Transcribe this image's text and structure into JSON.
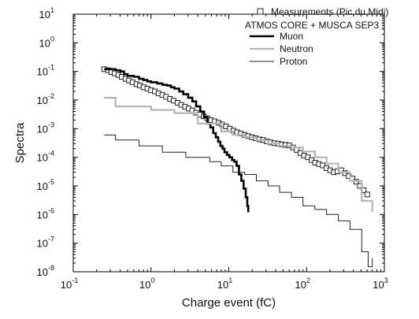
{
  "chart_data": {
    "type": "line",
    "xlabel": "Charge event (fC)",
    "ylabel": "Spectra",
    "x_scale": "log",
    "y_scale": "log",
    "xlim": [
      0.1,
      1000
    ],
    "ylim": [
      1e-08,
      10
    ],
    "x_ticks": [
      {
        "value": 0.1,
        "base": "10",
        "exp": "-1"
      },
      {
        "value": 1,
        "base": "10",
        "exp": "0"
      },
      {
        "value": 10,
        "base": "10",
        "exp": "1"
      },
      {
        "value": 100,
        "base": "10",
        "exp": "2"
      },
      {
        "value": 1000,
        "base": "10",
        "exp": "3"
      }
    ],
    "y_ticks": [
      {
        "value": 10,
        "base": "10",
        "exp": "1"
      },
      {
        "value": 1,
        "base": "10",
        "exp": "0"
      },
      {
        "value": 0.1,
        "base": "10",
        "exp": "-1"
      },
      {
        "value": 0.01,
        "base": "10",
        "exp": "-2"
      },
      {
        "value": 0.001,
        "base": "10",
        "exp": "-3"
      },
      {
        "value": 0.0001,
        "base": "10",
        "exp": "-4"
      },
      {
        "value": 1e-05,
        "base": "10",
        "exp": "-5"
      },
      {
        "value": 1e-06,
        "base": "10",
        "exp": "-6"
      },
      {
        "value": 1e-07,
        "base": "10",
        "exp": "-7"
      },
      {
        "value": 1e-08,
        "base": "10",
        "exp": "-8"
      }
    ],
    "grid": false,
    "legend_position": "top-right",
    "legend_heading": "ATMOS CORE + MUSCA SEP3 :",
    "series": [
      {
        "name": "Measurements (Pic du Midi)",
        "style": "markers",
        "marker": "open-square",
        "color": "#222222",
        "x": [
          0.25,
          0.28,
          0.31,
          0.34,
          0.38,
          0.42,
          0.47,
          0.52,
          0.58,
          0.65,
          0.72,
          0.8,
          0.9,
          1.0,
          1.12,
          1.25,
          1.4,
          1.56,
          1.75,
          1.95,
          2.2,
          2.45,
          2.75,
          3.05,
          3.4,
          3.8,
          4.25,
          4.75,
          5.3,
          5.9,
          6.6,
          7.4,
          8.2,
          9.2,
          10.3,
          11.5,
          12.8,
          14.3,
          16.0,
          17.8,
          19.9,
          22.2,
          24.8,
          27.7,
          30.9,
          34.5,
          38.5,
          43,
          48,
          53.6,
          59.8,
          66.8,
          74.6,
          83.3,
          93,
          104,
          116,
          129,
          144,
          161,
          180,
          201,
          224,
          250,
          280,
          312,
          348,
          389,
          434,
          485,
          541,
          604
        ],
        "y": [
          0.12,
          0.11,
          0.095,
          0.085,
          0.075,
          0.065,
          0.055,
          0.048,
          0.042,
          0.036,
          0.032,
          0.028,
          0.025,
          0.022,
          0.02,
          0.017,
          0.015,
          0.013,
          0.011,
          0.0095,
          0.008,
          0.0068,
          0.0058,
          0.005,
          0.0043,
          0.0036,
          0.0031,
          0.0027,
          0.0023,
          0.002,
          0.0018,
          0.0016,
          0.0014,
          0.0012,
          0.001,
          0.00085,
          0.00075,
          0.00068,
          0.0006,
          0.00055,
          0.0005,
          0.00046,
          0.00042,
          0.0004,
          0.00036,
          0.00033,
          0.00031,
          0.0003,
          0.00028,
          0.00027,
          0.00026,
          0.00022,
          0.00018,
          0.00014,
          0.000115,
          0.0001,
          8e-05,
          6.5e-05,
          5.8e-05,
          5.2e-05,
          4.2e-05,
          3.5e-05,
          3e-05,
          3.2e-05,
          3.5e-05,
          2.8e-05,
          2.2e-05,
          1.8e-05,
          1.4e-05,
          1e-05,
          7e-06,
          5e-06
        ]
      },
      {
        "name": "Muon",
        "style": "step",
        "color": "#000000",
        "width": 2.6,
        "x": [
          0.25,
          0.3,
          0.35,
          0.4,
          0.45,
          0.5,
          0.6,
          0.7,
          0.8,
          0.9,
          1.0,
          1.2,
          1.4,
          1.6,
          1.8,
          2.0,
          2.3,
          2.6,
          3.0,
          3.4,
          3.8,
          4.3,
          4.8,
          5.3,
          5.8,
          6.3,
          6.8,
          7.3,
          7.8,
          8.3,
          8.8,
          9.5,
          10.2,
          11.0,
          11.8,
          12.6,
          13.5,
          14.5,
          15.5,
          16.5,
          17.3,
          17.8
        ],
        "y": [
          0.12,
          0.12,
          0.11,
          0.1,
          0.08,
          0.07,
          0.065,
          0.055,
          0.05,
          0.045,
          0.042,
          0.038,
          0.034,
          0.032,
          0.028,
          0.025,
          0.02,
          0.016,
          0.012,
          0.009,
          0.006,
          0.004,
          0.0025,
          0.0015,
          0.0011,
          0.0007,
          0.0005,
          0.00035,
          0.00025,
          0.0002,
          0.00015,
          0.00012,
          0.0001,
          8e-05,
          7e-05,
          5e-05,
          2.5e-05,
          1.5e-05,
          8e-06,
          4e-06,
          2e-06,
          1.2e-06
        ]
      },
      {
        "name": "Neutron",
        "style": "step",
        "color": "#b5b5b5",
        "width": 2.2,
        "x": [
          0.25,
          0.35,
          0.5,
          0.7,
          1.0,
          1.4,
          2.0,
          2.8,
          4.0,
          5.7,
          8.0,
          11.3,
          16,
          22.6,
          32,
          45,
          64,
          90,
          128,
          181,
          256,
          362,
          512,
          700
        ],
        "y": [
          0.012,
          0.006,
          0.006,
          0.006,
          0.0045,
          0.0045,
          0.0035,
          0.0035,
          0.0015,
          0.0015,
          0.0008,
          0.0006,
          0.0005,
          0.0004,
          0.0003,
          0.00025,
          0.00022,
          0.00016,
          0.0001,
          6e-05,
          3e-05,
          1.5e-05,
          3e-06,
          1.2e-06
        ]
      },
      {
        "name": "Proton",
        "style": "step",
        "color": "#222222",
        "width": 1.0,
        "x": [
          0.25,
          0.35,
          0.5,
          0.7,
          1.0,
          1.4,
          2.0,
          2.8,
          4.0,
          5.7,
          8.0,
          11.3,
          16,
          22.6,
          32,
          45,
          64,
          90,
          128,
          181,
          256,
          362,
          512,
          620,
          700
        ],
        "y": [
          0.0006,
          0.0004,
          0.0004,
          0.00025,
          0.00025,
          0.00015,
          0.00015,
          0.0001,
          0.0001,
          7e-05,
          5e-05,
          3e-05,
          2.5e-05,
          1.5e-05,
          1e-05,
          6e-06,
          4e-06,
          2e-06,
          1.5e-06,
          1e-06,
          6e-07,
          3e-07,
          5e-08,
          1.5e-08,
          3e-08
        ]
      }
    ]
  }
}
